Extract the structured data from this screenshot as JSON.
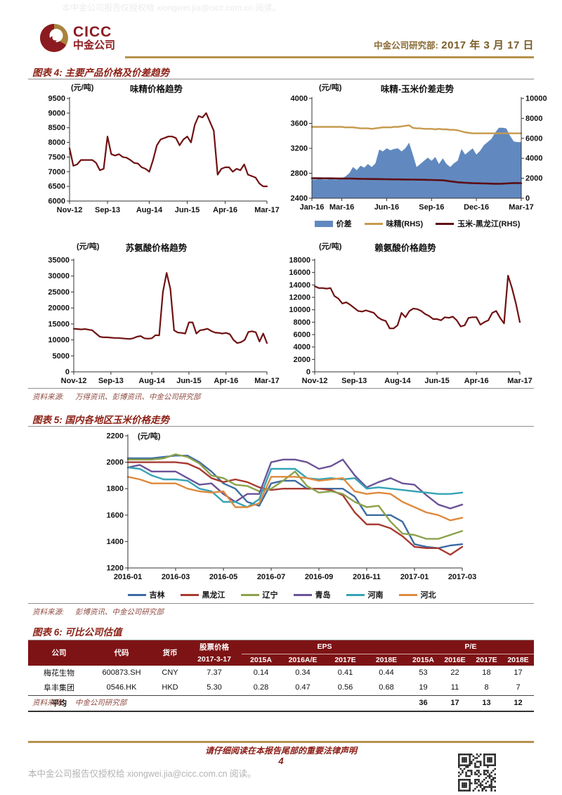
{
  "page": {
    "watermark": "本中金公司报告仅授权给 xiongwei.jia@cicc.com.cn 阅读。",
    "footer_notice": "请仔细阅读在本报告尾部的重要法律声明",
    "page_number": "4"
  },
  "header": {
    "logo_en": "CICC",
    "logo_cn": "中金公司",
    "dept": "中金公司研究部:",
    "date": "2017 年 3 月 17 日"
  },
  "figures": {
    "fig4": {
      "title": "图表 4: 主要产品价格及价差趋势",
      "source_label": "资料来源:",
      "source": "万得资讯、彭博资讯、中金公司研究部"
    },
    "fig5": {
      "title": "图表 5: 国内各地区玉米价格走势",
      "source_label": "资料来源:",
      "source": "彭博资讯、中金公司研究部"
    },
    "fig6": {
      "title": "图表 6: 可比公司估值",
      "source_label": "资料来源:",
      "source": "中金公司研究部"
    }
  },
  "colors": {
    "brand_red": "#8B1B20",
    "gold_rule": "#B6924E",
    "chart_maroon": "#701112",
    "area_blue": "#6189BF",
    "line_gold": "#C79A4E",
    "line_dark_maroon": "#5C0E14",
    "table_header_bg": "#7E1315"
  },
  "chart_data": [
    {
      "id": "msg-price",
      "type": "line",
      "title": "味精价格趋势",
      "unit": "(元/吨)",
      "ylim": [
        6000,
        9500
      ],
      "ytick_step": 500,
      "xticklabels": [
        "Nov-12",
        "Sep-13",
        "Aug-14",
        "Jun-15",
        "Apr-16",
        "Mar-17"
      ],
      "xtick_pos": [
        0,
        10,
        21,
        31,
        41,
        52
      ],
      "series": [
        {
          "name": "味精价格",
          "color": "#701112",
          "width": 2.2,
          "values": [
            7800,
            7200,
            7250,
            7400,
            7400,
            7400,
            7400,
            7300,
            7050,
            7100,
            8200,
            7600,
            7550,
            7600,
            7500,
            7480,
            7400,
            7300,
            7280,
            7150,
            7100,
            7000,
            7400,
            7900,
            8100,
            8150,
            8200,
            8200,
            8150,
            7900,
            8100,
            8200,
            8000,
            8600,
            8900,
            8850,
            9000,
            8700,
            8400,
            6900,
            7100,
            7150,
            7150,
            7000,
            7100,
            7050,
            7250,
            6900,
            6850,
            6800,
            6600,
            6500,
            6500
          ]
        }
      ]
    },
    {
      "id": "msg-corn-spread",
      "type": "area-line-combo",
      "title": "味精-玉米价差走势",
      "unit": "(元/吨)",
      "ylim_left": [
        2400,
        4000
      ],
      "ytick_step_left": 400,
      "ylim_right": [
        0,
        10000
      ],
      "ytick_step_right": 2000,
      "xticklabels": [
        "Jan-16",
        "Mar-16",
        "Jun-16",
        "Sep-16",
        "Dec-16",
        "Mar-17"
      ],
      "xtick_pos": [
        0,
        8,
        20,
        32,
        44,
        56
      ],
      "series": [
        {
          "name": "价差",
          "type": "area",
          "axis": "left",
          "color": "#6189BF",
          "values": [
            2700,
            2700,
            2710,
            2700,
            2700,
            2710,
            2700,
            2700,
            2720,
            2750,
            2800,
            2900,
            2850,
            2920,
            2890,
            2950,
            2900,
            2960,
            3180,
            3150,
            3200,
            3170,
            3190,
            3200,
            3150,
            3200,
            3290,
            3100,
            2900,
            2950,
            3000,
            3050,
            3000,
            3060,
            2950,
            3040,
            2950,
            2900,
            2960,
            3000,
            3190,
            3100,
            3150,
            3200,
            3100,
            3160,
            3250,
            3300,
            3350,
            3450,
            3530,
            3530,
            3520,
            3400,
            3310,
            3300,
            3300
          ]
        },
        {
          "name": "味精(RHS)",
          "type": "line",
          "axis": "right",
          "color": "#C79A4E",
          "width": 2.4,
          "values": [
            7150,
            7150,
            7150,
            7150,
            7150,
            7150,
            7150,
            7150,
            7150,
            7100,
            7100,
            7100,
            7050,
            7000,
            7000,
            7000,
            6950,
            7000,
            7050,
            7100,
            7100,
            7100,
            7150,
            7150,
            7200,
            7250,
            7300,
            7050,
            7000,
            7000,
            6950,
            6950,
            6950,
            6900,
            6950,
            6900,
            6900,
            6850,
            6850,
            6800,
            6700,
            6600,
            6550,
            6500,
            6500,
            6500,
            6500,
            6500,
            6500,
            6500,
            6500,
            6500,
            6500,
            6500,
            6500,
            6500,
            6500
          ]
        },
        {
          "name": "玉米-黑龙江(RHS)",
          "type": "line",
          "axis": "right",
          "color": "#5C0E14",
          "width": 2.6,
          "values": [
            2000,
            2000,
            2000,
            1995,
            1990,
            1990,
            1985,
            1980,
            1980,
            1975,
            1970,
            1965,
            1950,
            1945,
            1940,
            1930,
            1925,
            1920,
            1915,
            1910,
            1900,
            1895,
            1890,
            1885,
            1880,
            1875,
            1870,
            1865,
            1860,
            1855,
            1850,
            1840,
            1830,
            1820,
            1810,
            1800,
            1750,
            1700,
            1650,
            1600,
            1570,
            1550,
            1530,
            1510,
            1500,
            1490,
            1480,
            1470,
            1460,
            1450,
            1450,
            1460,
            1480,
            1500,
            1520,
            1520,
            1500
          ]
        }
      ]
    },
    {
      "id": "threonine-price",
      "type": "line",
      "title": "苏氨酸价格趋势",
      "unit": "(元/吨)",
      "ylim": [
        0,
        35000
      ],
      "ytick_step": 5000,
      "xticklabels": [
        "Nov-12",
        "Sep-13",
        "Aug-14",
        "Jun-15",
        "Apr-16",
        "Mar-17"
      ],
      "xtick_pos": [
        0,
        10,
        21,
        31,
        41,
        52
      ],
      "series": [
        {
          "name": "苏氨酸价格",
          "color": "#701112",
          "width": 2.2,
          "values": [
            13500,
            13400,
            13300,
            13400,
            13200,
            13000,
            12000,
            11000,
            10800,
            10800,
            10700,
            10600,
            10600,
            10500,
            10400,
            10300,
            10500,
            11000,
            11200,
            10500,
            10400,
            10500,
            11500,
            11400,
            25000,
            31000,
            26000,
            13000,
            12300,
            12200,
            12000,
            15500,
            15500,
            12000,
            13000,
            13200,
            13500,
            12800,
            12300,
            12200,
            12000,
            12200,
            11800,
            10000,
            9000,
            9300,
            10000,
            12500,
            12700,
            12400,
            9500,
            12000,
            9000
          ]
        }
      ]
    },
    {
      "id": "lysine-price",
      "type": "line",
      "title": "赖氨酸价格趋势",
      "unit": "(元/吨)",
      "ylim": [
        0,
        18000
      ],
      "ytick_step": 2000,
      "xticklabels": [
        "Nov-12",
        "Sep-13",
        "Aug-14",
        "Jun-15",
        "Apr-16",
        "Mar-17"
      ],
      "xtick_pos": [
        0,
        10,
        21,
        31,
        41,
        52
      ],
      "series": [
        {
          "name": "赖氨酸价格",
          "color": "#701112",
          "width": 2.2,
          "values": [
            13800,
            13500,
            13500,
            13400,
            13500,
            12200,
            11800,
            11000,
            11200,
            10800,
            10300,
            9800,
            9700,
            9900,
            9700,
            9500,
            8800,
            8400,
            8200,
            7000,
            7000,
            7500,
            9500,
            8800,
            9800,
            10200,
            10100,
            9800,
            9300,
            9000,
            8500,
            8500,
            8300,
            8800,
            8700,
            8900,
            8300,
            7300,
            7500,
            8700,
            8800,
            8800,
            7600,
            8000,
            8300,
            9500,
            9800,
            8700,
            7800,
            15500,
            13500,
            11000,
            8000
          ]
        }
      ]
    },
    {
      "id": "regional-corn-price",
      "type": "line",
      "title": "",
      "unit": "(元/吨)",
      "ylim": [
        1200,
        2200
      ],
      "ytick_step": 200,
      "xticklabels": [
        "2016-01",
        "2016-03",
        "2016-05",
        "2016-07",
        "2016-09",
        "2016-11",
        "2017-01",
        "2017-03"
      ],
      "xtick_pos": [
        0,
        4,
        8,
        12,
        16,
        20,
        24,
        28
      ],
      "series": [
        {
          "name": "吉林",
          "color": "#3D6CA3",
          "width": 2.4,
          "values": [
            2030,
            2030,
            2030,
            2040,
            2050,
            2050,
            2000,
            1930,
            1840,
            1800,
            1700,
            1670,
            1840,
            1860,
            1860,
            1800,
            1800,
            1800,
            1800,
            1740,
            1600,
            1600,
            1600,
            1550,
            1380,
            1360,
            1350,
            1370,
            1380
          ]
        },
        {
          "name": "黑龙江",
          "color": "#A83A31",
          "width": 2.4,
          "values": [
            2000,
            2000,
            2000,
            2000,
            2000,
            1990,
            1950,
            1880,
            1850,
            1870,
            1850,
            1810,
            1790,
            1800,
            1800,
            1800,
            1800,
            1790,
            1750,
            1620,
            1530,
            1530,
            1500,
            1440,
            1360,
            1350,
            1350,
            1300,
            1360
          ]
        },
        {
          "name": "辽宁",
          "color": "#8CA24C",
          "width": 2.4,
          "values": [
            2020,
            2020,
            2020,
            2030,
            2060,
            2040,
            1990,
            1900,
            1880,
            1830,
            1820,
            1780,
            1800,
            1860,
            1930,
            1820,
            1770,
            1780,
            1760,
            1700,
            1660,
            1670,
            1550,
            1460,
            1450,
            1420,
            1420,
            1450,
            1480
          ]
        },
        {
          "name": "青岛",
          "color": "#6B5397",
          "width": 2.4,
          "values": [
            1960,
            1980,
            1930,
            1930,
            1930,
            1880,
            1830,
            1840,
            1760,
            1700,
            1760,
            1760,
            2000,
            2020,
            2020,
            2000,
            1950,
            1970,
            2020,
            1900,
            1810,
            1850,
            1880,
            1840,
            1830,
            1750,
            1680,
            1650,
            1680
          ]
        },
        {
          "name": "河南",
          "color": "#35A3B5",
          "width": 2.4,
          "values": [
            1960,
            1950,
            1900,
            1870,
            1870,
            1860,
            1800,
            1780,
            1700,
            1700,
            1660,
            1720,
            1950,
            1950,
            1950,
            1880,
            1870,
            1880,
            1870,
            1880,
            1800,
            1810,
            1800,
            1790,
            1780,
            1770,
            1760,
            1760,
            1770
          ]
        },
        {
          "name": "河北",
          "color": "#DE8A3D",
          "width": 2.4,
          "values": [
            1890,
            1870,
            1840,
            1840,
            1840,
            1800,
            1780,
            1770,
            1780,
            1660,
            1660,
            1690,
            1890,
            1890,
            1890,
            1880,
            1860,
            1870,
            1880,
            1780,
            1760,
            1770,
            1760,
            1700,
            1660,
            1620,
            1600,
            1560,
            1580
          ]
        }
      ]
    }
  ],
  "table": {
    "col_headers_row1": {
      "company": "公司",
      "code": "代码",
      "currency": "货币",
      "price": "股票价格",
      "eps": "EPS",
      "pe": "P/E"
    },
    "col_headers_row2": [
      "2017-3-17",
      "2015A",
      "2016A/E",
      "2017E",
      "2018E",
      "2015A",
      "2016E",
      "2017E",
      "2018E"
    ],
    "rows": [
      [
        "梅花生物",
        "600873.SH",
        "CNY",
        "7.37",
        "0.14",
        "0.34",
        "0.41",
        "0.44",
        "53",
        "22",
        "18",
        "17"
      ],
      [
        "阜丰集团",
        "0546.HK",
        "HKD",
        "5.30",
        "0.28",
        "0.47",
        "0.56",
        "0.68",
        "19",
        "11",
        "8",
        "7"
      ]
    ],
    "avg_row": [
      "平均",
      "",
      "",
      "",
      "",
      "",
      "",
      "",
      "36",
      "17",
      "13",
      "12"
    ]
  }
}
